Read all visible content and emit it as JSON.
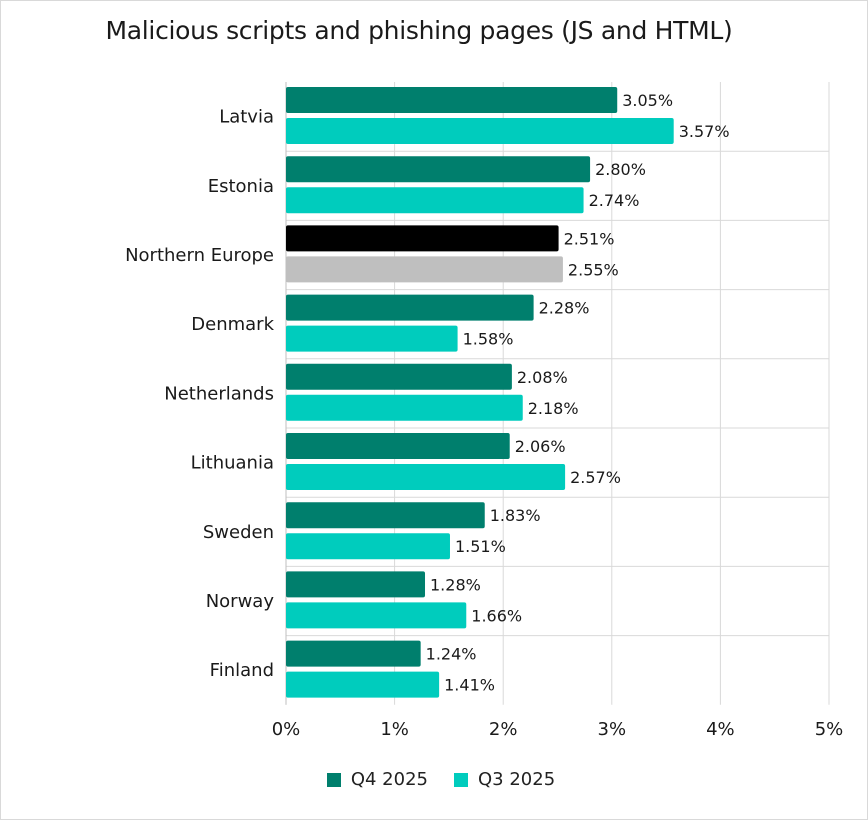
{
  "chart_data": {
    "type": "bar",
    "orientation": "horizontal",
    "title": "Malicious scripts and phishing pages (JS and HTML)",
    "categories": [
      "Latvia",
      "Estonia",
      "Northern Europe",
      "Denmark",
      "Netherlands",
      "Lithuania",
      "Sweden",
      "Norway",
      "Finland"
    ],
    "series": [
      {
        "name": "Q4 2025",
        "color": "#007f6d",
        "values": [
          3.05,
          2.8,
          2.51,
          2.28,
          2.08,
          2.06,
          1.83,
          1.28,
          1.24
        ],
        "labels": [
          "3.05%",
          "2.80%",
          "2.51%",
          "2.28%",
          "2.08%",
          "2.06%",
          "1.83%",
          "1.28%",
          "1.24%"
        ]
      },
      {
        "name": "Q3 2025",
        "color": "#00ccbd",
        "values": [
          3.57,
          2.74,
          2.55,
          1.58,
          2.18,
          2.57,
          1.51,
          1.66,
          1.41
        ],
        "labels": [
          "3.57%",
          "2.74%",
          "2.55%",
          "1.58%",
          "2.18%",
          "2.57%",
          "1.51%",
          "1.66%",
          "1.41%"
        ]
      }
    ],
    "highlight": {
      "category": "Northern Europe",
      "colors": [
        "#000000",
        "#bfbfbf"
      ]
    },
    "xlim": [
      0,
      5
    ],
    "xticks": [
      "0%",
      "1%",
      "2%",
      "3%",
      "4%",
      "5%"
    ],
    "grid": true,
    "legend_position": "bottom"
  }
}
